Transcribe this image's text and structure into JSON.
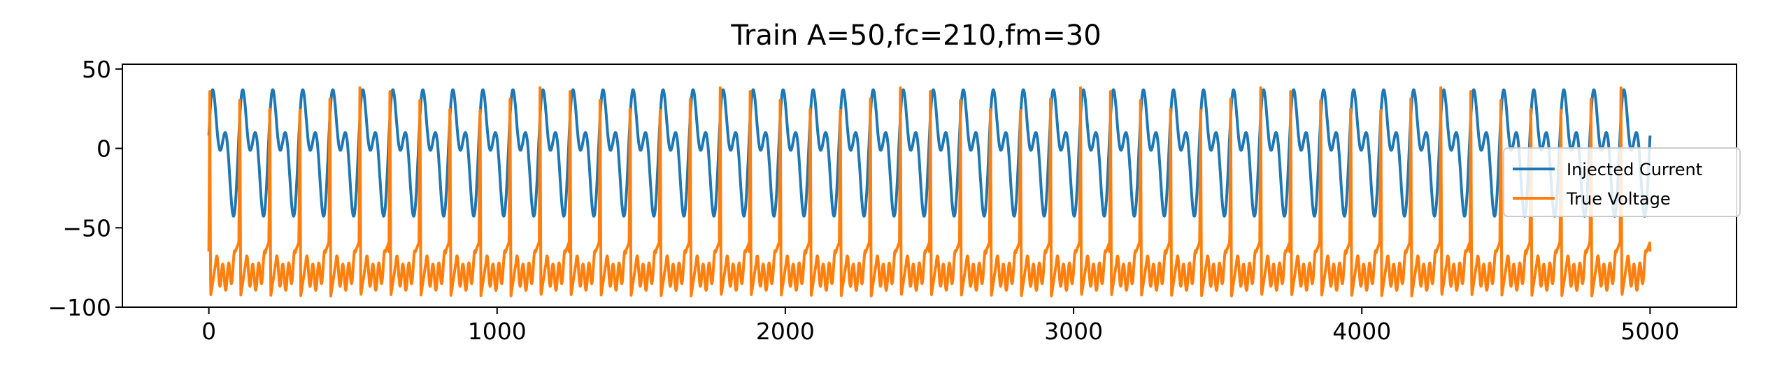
{
  "chart_data": {
    "type": "line",
    "title": "Train A=50,fc=210,fm=30",
    "xlabel": "",
    "ylabel": "",
    "xlim": [
      -300,
      5300
    ],
    "ylim": [
      -100,
      53
    ],
    "x_ticks": [
      0,
      1000,
      2000,
      3000,
      4000,
      5000
    ],
    "x_tick_labels": [
      "0",
      "1000",
      "2000",
      "3000",
      "4000",
      "5000"
    ],
    "y_ticks": [
      50,
      0,
      -50,
      -100
    ],
    "y_tick_labels": [
      "50",
      "0",
      "−50",
      "−100"
    ],
    "grid": false,
    "legend_position": "center-right",
    "series": [
      {
        "name": "Injected Current",
        "color": "#1f77b4",
        "description_model": {
          "amplitude": 50,
          "carrier_freq": 210,
          "mod_freq": 30,
          "x_start": 0,
          "x_end": 5000,
          "peak_max": 45,
          "trough_min": -50,
          "inner_peak": 13
        }
      },
      {
        "name": "True Voltage",
        "color": "#ff7f0e",
        "description_model": {
          "resting": -65,
          "spike_peak": 40,
          "trough_min": -93,
          "x_start": 0,
          "x_end": 5000
        }
      }
    ]
  }
}
